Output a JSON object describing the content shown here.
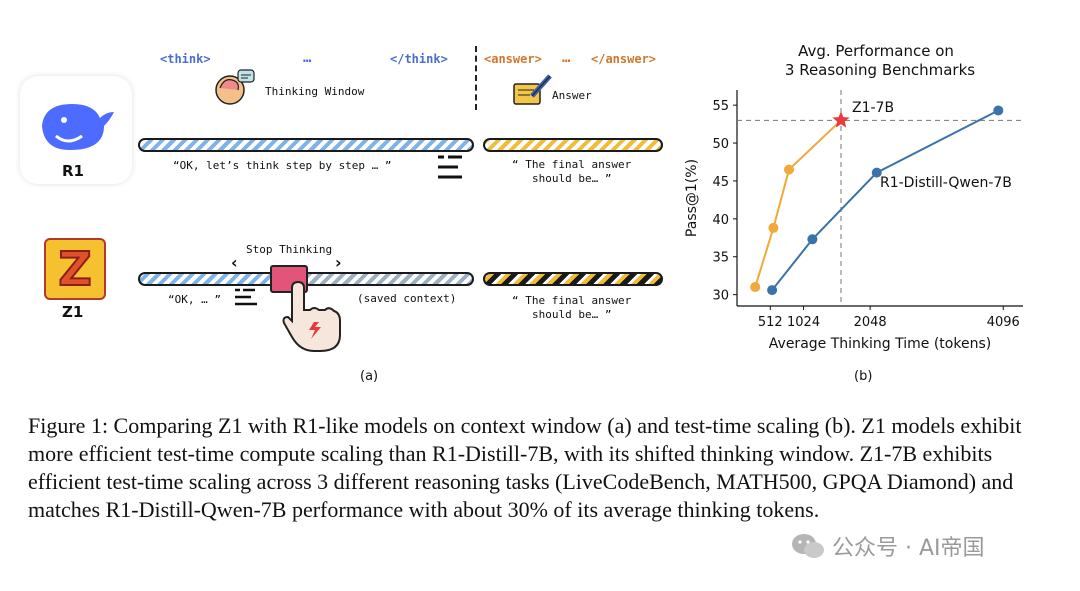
{
  "panel_a": {
    "tags": {
      "think_open": "<think>",
      "think_ellipsis": "…",
      "think_close": "</think>",
      "answer_open": "<answer>",
      "answer_ellipsis": "…",
      "answer_close": "</answer>"
    },
    "thinking_window_label": "Thinking Window",
    "answer_label": "Answer",
    "r1": {
      "name": "R1",
      "think_quote": "“OK, let’s think step by step … ”",
      "answer_quote_line1": "“ The final answer",
      "answer_quote_line2": "should be… ”"
    },
    "z1": {
      "name": "Z1",
      "logo_letter": "Z",
      "stop_label": "Stop Thinking",
      "left_arrow": "‹",
      "right_arrow": "›",
      "think_quote": "“OK, … ”",
      "saved_context": "(saved context)",
      "answer_quote_line1": "“ The final answer",
      "answer_quote_line2": "should be… ”"
    },
    "sublabel": "(a)"
  },
  "panel_b_label": "(b)",
  "chart_data": {
    "type": "line",
    "title": "Avg. Performance on\n3 Reasoning Benchmarks",
    "title_line1": "Avg. Performance on",
    "title_line2": "3 Reasoning Benchmarks",
    "xlabel": "Average Thinking Time (tokens)",
    "ylabel": "Pass@1(%)",
    "xlim": [
      0,
      4400
    ],
    "ylim": [
      28.5,
      57
    ],
    "xticks": [
      512,
      1024,
      2048,
      4096
    ],
    "xtick_labels": [
      "512",
      "1024",
      "2048",
      "4096"
    ],
    "yticks": [
      30,
      35,
      40,
      45,
      50,
      55
    ],
    "ytick_labels": [
      "30",
      "35",
      "40",
      "45",
      "50",
      "55"
    ],
    "series": [
      {
        "name": "Z1-7B",
        "color": "#f0a93a",
        "x": [
          280,
          560,
          800,
          1600
        ],
        "y": [
          31.0,
          38.8,
          46.5,
          53.0
        ],
        "marker_last": "star",
        "star_color": "#e83d3d"
      },
      {
        "name": "R1-Distill-Qwen-7B",
        "color": "#3a73aa",
        "x": [
          540,
          1160,
          2150,
          4020
        ],
        "y": [
          30.6,
          37.3,
          46.1,
          54.3
        ]
      }
    ],
    "reference_lines": {
      "hline_y": 53.0,
      "vline_x": 1600,
      "style": "dashed"
    },
    "annotations": [
      {
        "text": "Z1-7B",
        "near_series": "Z1-7B"
      },
      {
        "text": "R1-Distill-Qwen-7B",
        "near_series": "R1-Distill-Qwen-7B"
      }
    ]
  },
  "caption": "Figure 1: Comparing Z1 with R1-like models on context window (a) and test-time scaling (b). Z1 models exhibit more efficient test-time compute scaling than R1-Distill-7B, with its shifted thinking window. Z1-7B exhibits efficient test-time scaling across 3 different reasoning tasks (LiveCodeBench, MATH500, GPQA Diamond) and matches R1-Distill-Qwen-7B performance with about 30% of its average thinking tokens.",
  "watermark": "公众号 · AI帝国",
  "colors": {
    "blue": "#4a6cd4",
    "orange": "#d4762a",
    "z1_line": "#f0a93a",
    "r1_line": "#3a73aa"
  }
}
